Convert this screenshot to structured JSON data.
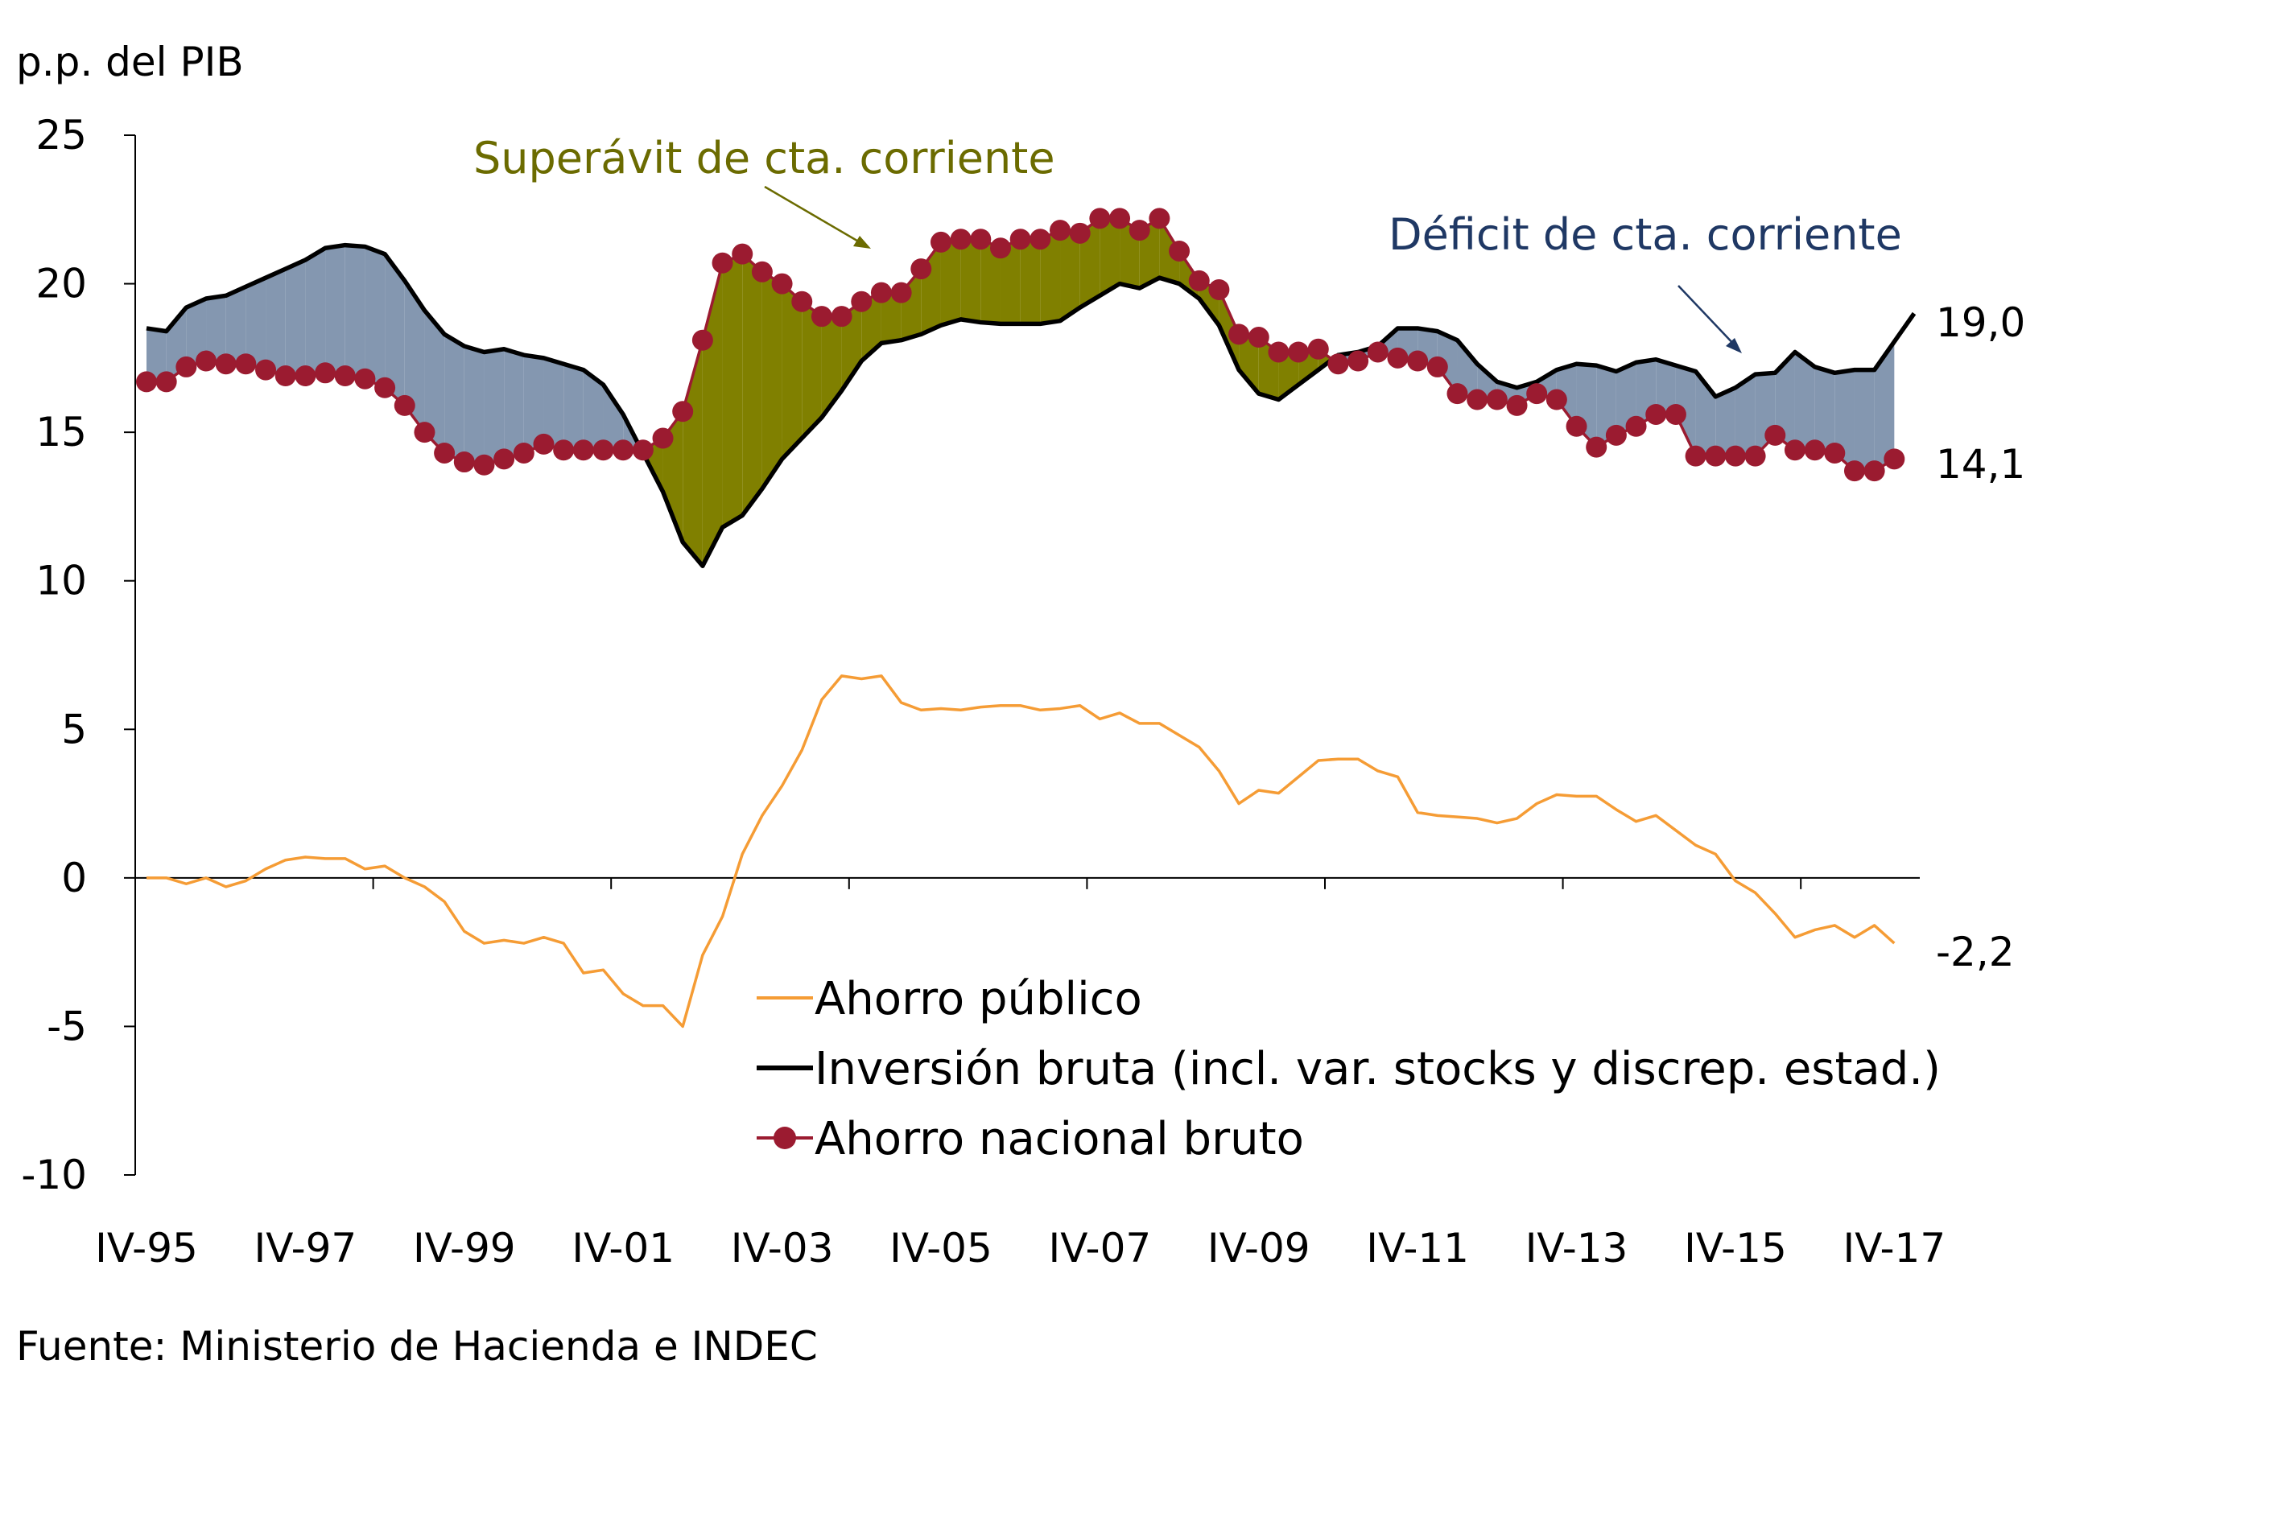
{
  "chart_data": {
    "type": "line",
    "ylabel": "p.p. del PIB",
    "source": "Fuente: Ministerio de Hacienda e INDEC",
    "ylim": [
      -10,
      25
    ],
    "yticks": [
      25,
      20,
      15,
      10,
      5,
      0,
      -5,
      -10
    ],
    "x_start": "IV-95",
    "x_end": "IV-17",
    "xtick_labels": [
      "IV-95",
      "IV-97",
      "IV-99",
      "IV-01",
      "IV-03",
      "IV-05",
      "IV-07",
      "IV-09",
      "IV-11",
      "IV-13",
      "IV-15",
      "IV-17"
    ],
    "colors": {
      "ahorro_publico": "#F59C35",
      "inversion": "#000000",
      "ahorro_nacional": "#9B1B30",
      "deficit_fill": "#8497B0",
      "superavit_fill": "#808000",
      "superavit_text": "#6B6B00",
      "deficit_text": "#1F3864"
    },
    "series": [
      {
        "name": "Ahorro público",
        "key": "ahorro_publico",
        "values": [
          0,
          0,
          -0.2,
          0,
          -0.3,
          -0.1,
          0.3,
          0.6,
          0.7,
          0.65,
          0.65,
          0.3,
          0.4,
          0,
          -0.3,
          -0.8,
          -1.8,
          -2.2,
          -2.1,
          -2.2,
          -2.0,
          -2.2,
          -3.2,
          -3.1,
          -3.9,
          -4.3,
          -4.3,
          -5.0,
          -2.6,
          -1.3,
          0.8,
          2.1,
          3.1,
          4.3,
          6.0,
          6.8,
          6.7,
          6.8,
          5.9,
          5.65,
          5.7,
          5.65,
          5.75,
          5.8,
          5.8,
          5.65,
          5.7,
          5.8,
          5.35,
          5.55,
          5.2,
          5.2,
          4.8,
          4.4,
          3.6,
          2.5,
          2.95,
          2.85,
          3.4,
          3.95,
          4.0,
          4.0,
          3.6,
          3.4,
          2.2,
          2.1,
          2.05,
          2.0,
          1.85,
          2.0,
          2.5,
          2.8,
          2.75,
          2.75,
          2.3,
          1.9,
          2.1,
          1.6,
          1.1,
          0.8,
          -0.1,
          -0.5,
          -1.2,
          -2.0,
          -1.75,
          -1.6,
          -2.0,
          -1.6,
          -2.2
        ]
      },
      {
        "name": "Inversión bruta (incl. var. stocks y discrep. estad.)",
        "key": "inversion",
        "values": [
          18.5,
          18.4,
          19.2,
          19.5,
          19.6,
          19.9,
          20.2,
          20.5,
          20.8,
          21.2,
          21.3,
          21.25,
          21.0,
          20.1,
          19.1,
          18.3,
          17.9,
          17.7,
          17.8,
          17.6,
          17.5,
          17.3,
          17.1,
          16.6,
          15.6,
          14.3,
          13.0,
          11.3,
          10.5,
          11.8,
          12.2,
          13.1,
          14.1,
          14.8,
          15.5,
          16.4,
          17.4,
          18.0,
          18.1,
          18.3,
          18.6,
          18.8,
          18.7,
          18.65,
          18.65,
          18.65,
          18.75,
          19.2,
          19.6,
          20.0,
          19.85,
          20.2,
          20.0,
          19.5,
          18.6,
          17.1,
          16.3,
          16.1,
          16.6,
          17.1,
          17.6,
          17.7,
          17.9,
          18.5,
          18.5,
          18.4,
          18.1,
          17.3,
          16.7,
          16.5,
          16.7,
          17.1,
          17.3,
          17.25,
          17.05,
          17.35,
          17.45,
          17.25,
          17.05,
          16.2,
          16.5,
          16.95,
          17.0,
          17.7,
          17.2,
          17.0,
          17.1,
          17.1,
          18.05,
          19.0
        ]
      },
      {
        "name": "Ahorro nacional bruto",
        "key": "ahorro_nacional",
        "values": [
          16.7,
          16.7,
          17.2,
          17.4,
          17.3,
          17.3,
          17.1,
          16.9,
          16.9,
          17.0,
          16.9,
          16.8,
          16.5,
          15.9,
          15.0,
          14.3,
          14.0,
          13.9,
          14.1,
          14.3,
          14.6,
          14.4,
          14.4,
          14.4,
          14.4,
          14.4,
          14.8,
          15.7,
          18.1,
          20.7,
          21.0,
          20.4,
          20.0,
          19.4,
          18.9,
          18.9,
          19.4,
          19.7,
          19.7,
          20.5,
          21.4,
          21.5,
          21.5,
          21.2,
          21.5,
          21.5,
          21.8,
          21.7,
          22.2,
          22.2,
          21.8,
          22.2,
          21.1,
          20.1,
          19.8,
          18.3,
          18.2,
          17.7,
          17.7,
          17.8,
          17.3,
          17.4,
          17.7,
          17.5,
          17.4,
          17.2,
          16.3,
          16.1,
          16.1,
          15.9,
          16.3,
          16.1,
          15.2,
          14.5,
          14.9,
          15.2,
          15.6,
          15.6,
          14.2,
          14.2,
          14.2,
          14.2,
          14.9,
          14.4,
          14.4,
          14.3,
          13.7,
          13.7,
          14.1
        ]
      }
    ],
    "end_labels": {
      "inversion": "19,0",
      "ahorro_nacional": "14,1",
      "ahorro_publico": "-2,2"
    },
    "annotations": [
      {
        "key": "superavit",
        "text": "Superávit de cta. corriente"
      },
      {
        "key": "deficit",
        "text": "Déficit de cta. corriente"
      }
    ],
    "legend_position": "bottom-center"
  }
}
